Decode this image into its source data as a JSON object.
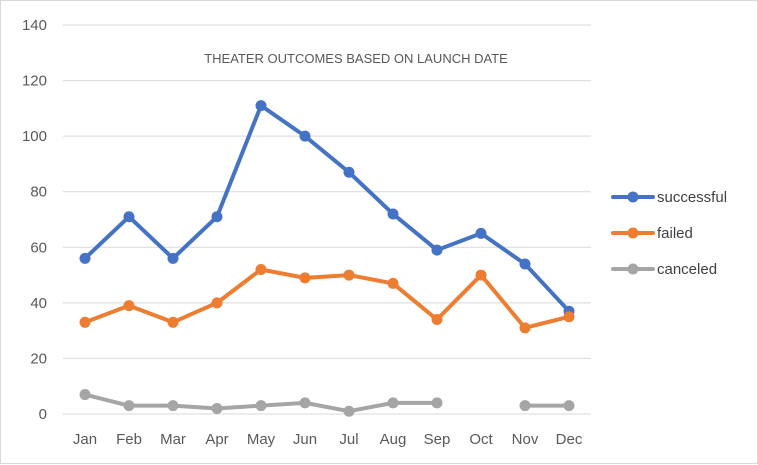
{
  "chart_data": {
    "type": "line",
    "title": "THEATER OUTCOMES BASED ON LAUNCH DATE",
    "categories": [
      "Jan",
      "Feb",
      "Mar",
      "Apr",
      "May",
      "Jun",
      "Jul",
      "Aug",
      "Sep",
      "Oct",
      "Nov",
      "Dec"
    ],
    "ylim": [
      0,
      140
    ],
    "yticks": [
      0,
      20,
      40,
      60,
      80,
      100,
      120,
      140
    ],
    "grid": true,
    "legend_position": "right",
    "series": [
      {
        "name": "successful",
        "color": "#4472c4",
        "values": [
          56,
          71,
          56,
          71,
          111,
          100,
          87,
          72,
          59,
          65,
          54,
          37
        ]
      },
      {
        "name": "failed",
        "color": "#ed7d31",
        "values": [
          33,
          39,
          33,
          40,
          52,
          49,
          50,
          47,
          34,
          50,
          31,
          35
        ]
      },
      {
        "name": "canceled",
        "color": "#a5a5a5",
        "values": [
          7,
          3,
          3,
          2,
          3,
          4,
          1,
          4,
          4,
          null,
          3,
          3
        ]
      }
    ]
  }
}
